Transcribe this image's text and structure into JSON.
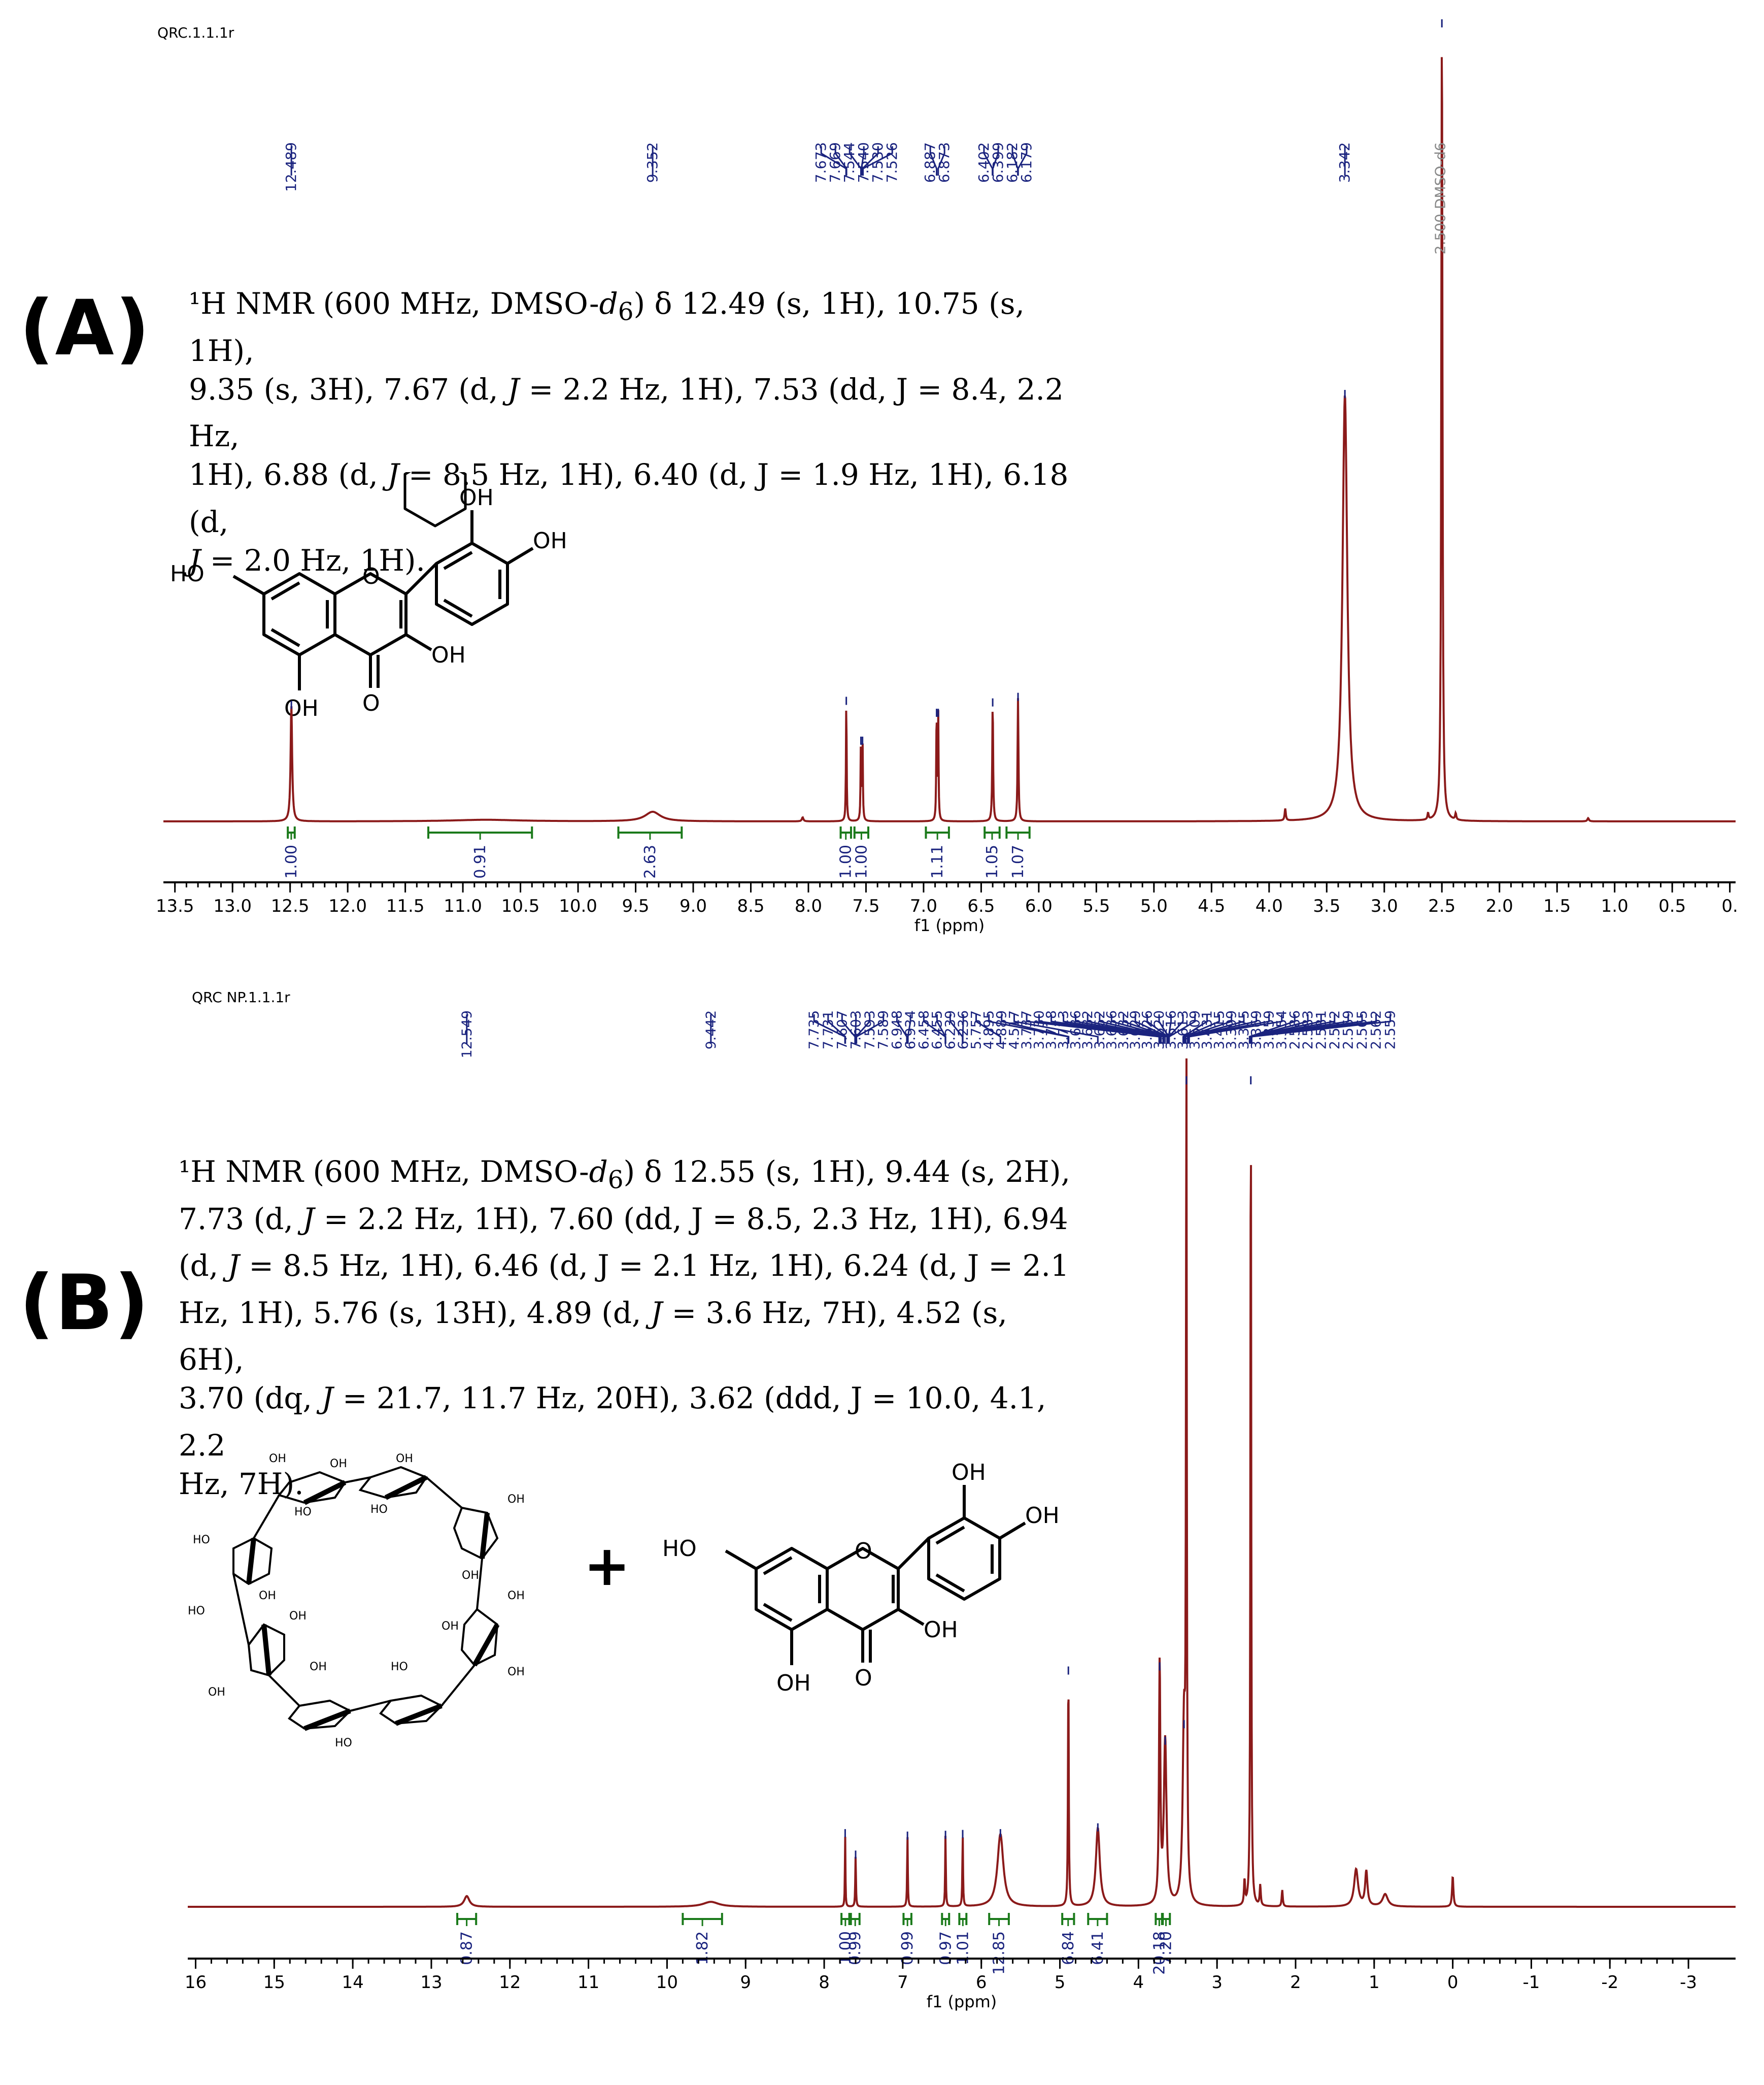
{
  "colors": {
    "spectrum": "#8b1a1a",
    "peak_label": "#1a237e",
    "integral": "#1b7a1b",
    "axis": "#000000"
  },
  "panels": [
    {
      "tag": "(A)",
      "file_id": "QRC.1.1.1r",
      "description_lines": [
        [
          "¹H NMR (600 MHz, DMSO-",
          "d",
          "6",
          ") δ 12.49 (s, 1H), 10.75 (s, 1H),"
        ],
        [
          "9.35 (s, 3H), 7.67 (d, ",
          "J",
          "",
          " = 2.2 Hz, 1H), 7.53 (dd, J = 8.4, 2.2 Hz,"
        ],
        [
          "1H), 6.88 (d, ",
          "J",
          "",
          " = 8.5 Hz, 1H), 6.40 (d, J = 1.9 Hz, 1H), 6.18 (d,"
        ],
        [
          "",
          "J",
          "",
          " = 2.0 Hz, 1H)."
        ]
      ],
      "structure_labels": [
        "OH",
        "OH",
        "HO",
        "OH",
        "OH",
        "O",
        "O"
      ],
      "chart_data": {
        "type": "line",
        "xlabel": "f1 (ppm)",
        "xlim": [
          13.6,
          -0.05
        ],
        "xticks": [
          "13.5",
          "13.0",
          "12.5",
          "12.0",
          "11.5",
          "11.0",
          "10.5",
          "10.0",
          "9.5",
          "9.0",
          "8.5",
          "8.0",
          "7.5",
          "7.0",
          "6.5",
          "6.0",
          "5.5",
          "5.0",
          "4.5",
          "4.0",
          "3.5",
          "3.0",
          "2.5",
          "2.0",
          "1.5",
          "1.0",
          "0.5",
          "0."
        ],
        "xtick_values": [
          13.5,
          13.0,
          12.5,
          12.0,
          11.5,
          11.0,
          10.5,
          10.0,
          9.5,
          9.0,
          8.5,
          8.0,
          7.5,
          7.0,
          6.5,
          6.0,
          5.5,
          5.0,
          4.5,
          4.0,
          3.5,
          3.0,
          2.5,
          2.0,
          1.5,
          1.0,
          0.5,
          0.0
        ],
        "peaks": [
          {
            "ppm": 12.489,
            "h": 0.145,
            "w": 0.008
          },
          {
            "ppm": 9.352,
            "h": 0.012,
            "w": 0.08
          },
          {
            "ppm": 10.8,
            "h": 0.002,
            "w": 0.35
          },
          {
            "ppm": 8.05,
            "h": 0.005,
            "w": 0.008
          },
          {
            "ppm": 7.671,
            "h": 0.15,
            "w": 0.0035
          },
          {
            "ppm": 7.544,
            "h": 0.1,
            "w": 0.0035
          },
          {
            "ppm": 7.53,
            "h": 0.1,
            "w": 0.0035
          },
          {
            "ppm": 6.887,
            "h": 0.135,
            "w": 0.0035
          },
          {
            "ppm": 6.873,
            "h": 0.135,
            "w": 0.0035
          },
          {
            "ppm": 6.4,
            "h": 0.148,
            "w": 0.0045
          },
          {
            "ppm": 6.18,
            "h": 0.155,
            "w": 0.0045
          },
          {
            "ppm": 3.86,
            "h": 0.015,
            "w": 0.006
          },
          {
            "ppm": 3.342,
            "h": 0.535,
            "w": 0.025
          },
          {
            "ppm": 2.62,
            "h": 0.008,
            "w": 0.006
          },
          {
            "ppm": 2.5,
            "h": 1.0,
            "w": 0.006
          },
          {
            "ppm": 2.38,
            "h": 0.008,
            "w": 0.006
          },
          {
            "ppm": 1.23,
            "h": 0.004,
            "w": 0.008
          }
        ],
        "peak_labels": [
          {
            "text": "12.489",
            "ppm": 12.489
          },
          {
            "text": "9.352",
            "ppm": 9.352
          },
          {
            "text": "7.673",
            "ppm": 7.673
          },
          {
            "text": "7.669",
            "ppm": 7.669
          },
          {
            "text": "7.544",
            "ppm": 7.544
          },
          {
            "text": "7.540",
            "ppm": 7.54
          },
          {
            "text": "7.530",
            "ppm": 7.53
          },
          {
            "text": "7.526",
            "ppm": 7.526
          },
          {
            "text": "6.887",
            "ppm": 6.887
          },
          {
            "text": "6.873",
            "ppm": 6.873
          },
          {
            "text": "6.402",
            "ppm": 6.402
          },
          {
            "text": "6.399",
            "ppm": 6.399
          },
          {
            "text": "6.182",
            "ppm": 6.182
          },
          {
            "text": "6.179",
            "ppm": 6.179
          },
          {
            "text": "3.342",
            "ppm": 3.342
          }
        ],
        "solvent_label": {
          "text": "2.500 DMSO-d6",
          "ppm": 2.5
        },
        "integrals": [
          {
            "value": "1.00",
            "from": 12.52,
            "to": 12.46
          },
          {
            "value": "0.91",
            "from": 11.3,
            "to": 10.4
          },
          {
            "value": "2.63",
            "from": 9.65,
            "to": 9.1
          },
          {
            "value": "1.00",
            "from": 7.72,
            "to": 7.63
          },
          {
            "value": "1.00",
            "from": 7.6,
            "to": 7.48
          },
          {
            "value": "1.11",
            "from": 6.98,
            "to": 6.78
          },
          {
            "value": "1.05",
            "from": 6.47,
            "to": 6.34
          },
          {
            "value": "1.07",
            "from": 6.28,
            "to": 6.08
          }
        ]
      }
    },
    {
      "tag": "(B)",
      "file_id": "QRC NP.1.1.1r",
      "description_lines": [
        [
          "¹H NMR (600 MHz, DMSO-",
          "d",
          "6",
          ") δ 12.55 (s, 1H), 9.44 (s, 2H),"
        ],
        [
          "7.73 (d, ",
          "J",
          "",
          " = 2.2 Hz, 1H), 7.60 (dd, J = 8.5, 2.3 Hz, 1H), 6.94"
        ],
        [
          "(d, ",
          "J",
          "",
          " = 8.5 Hz, 1H), 6.46 (d, J = 2.1 Hz, 1H), 6.24 (d, J = 2.1"
        ],
        [
          "Hz, 1H), 5.76 (s, 13H), 4.89 (d, ",
          "J",
          "",
          " = 3.6 Hz, 7H), 4.52 (s, 6H),"
        ],
        [
          "3.70 (dq, ",
          "J",
          "",
          " = 21.7, 11.7 Hz, 20H), 3.62 (ddd, J = 10.0, 4.1, 2.2"
        ],
        [
          "Hz, 7H).",
          "",
          "",
          ""
        ]
      ],
      "plus_sign": "+",
      "structure_labels": [
        "OH",
        "OH",
        "HO",
        "OH",
        "OH",
        "O",
        "O"
      ],
      "cyclodextrin_labels": [
        "OH",
        "OH",
        "OH",
        "HO",
        "HO",
        "HO",
        "OH",
        "OH",
        "OH",
        "OH",
        "HO",
        "OH",
        "OH",
        "OH",
        "HO",
        "OH",
        "OH",
        "HO"
      ],
      "chart_data": {
        "type": "line",
        "xlabel": "f1 (ppm)",
        "xlim": [
          16.1,
          -3.6
        ],
        "xticks": [
          "16",
          "15",
          "14",
          "13",
          "12",
          "11",
          "10",
          "9",
          "8",
          "7",
          "6",
          "5",
          "4",
          "3",
          "2",
          "1",
          "0",
          "-1",
          "-2",
          "-3"
        ],
        "xtick_values": [
          16,
          15,
          14,
          13,
          12,
          11,
          10,
          9,
          8,
          7,
          6,
          5,
          4,
          3,
          2,
          1,
          0,
          -1,
          -2,
          -3
        ],
        "peaks": [
          {
            "ppm": 12.549,
            "h": 0.013,
            "w": 0.04
          },
          {
            "ppm": 9.442,
            "h": 0.006,
            "w": 0.12
          },
          {
            "ppm": 7.733,
            "h": 0.088,
            "w": 0.004
          },
          {
            "ppm": 7.6,
            "h": 0.062,
            "w": 0.005
          },
          {
            "ppm": 6.94,
            "h": 0.085,
            "w": 0.005
          },
          {
            "ppm": 6.456,
            "h": 0.086,
            "w": 0.005
          },
          {
            "ppm": 6.237,
            "h": 0.087,
            "w": 0.005
          },
          {
            "ppm": 5.757,
            "h": 0.088,
            "w": 0.045
          },
          {
            "ppm": 4.892,
            "h": 0.285,
            "w": 0.006
          },
          {
            "ppm": 4.517,
            "h": 0.095,
            "w": 0.03
          },
          {
            "ppm": 3.73,
            "h": 0.29,
            "w": 0.01
          },
          {
            "ppm": 3.66,
            "h": 0.2,
            "w": 0.02
          },
          {
            "ppm": 3.42,
            "h": 0.22,
            "w": 0.02
          },
          {
            "ppm": 3.39,
            "h": 1.0,
            "w": 0.006
          },
          {
            "ppm": 2.57,
            "h": 1.0,
            "w": 0.006
          },
          {
            "ppm": 2.65,
            "h": 0.03,
            "w": 0.008
          },
          {
            "ppm": 2.45,
            "h": 0.025,
            "w": 0.008
          },
          {
            "ppm": 2.17,
            "h": 0.02,
            "w": 0.008
          },
          {
            "ppm": 1.23,
            "h": 0.045,
            "w": 0.03
          },
          {
            "ppm": 1.1,
            "h": 0.042,
            "w": 0.018
          },
          {
            "ppm": 0.86,
            "h": 0.015,
            "w": 0.04
          },
          {
            "ppm": 0.0,
            "h": 0.037,
            "w": 0.01
          }
        ],
        "peak_labels": [
          {
            "text": "12.549",
            "ppm": 12.549
          },
          {
            "text": "9.442",
            "ppm": 9.442
          },
          {
            "text": "7.735",
            "ppm": 7.735
          },
          {
            "text": "7.731",
            "ppm": 7.731
          },
          {
            "text": "7.607",
            "ppm": 7.607
          },
          {
            "text": "7.603",
            "ppm": 7.603
          },
          {
            "text": "7.593",
            "ppm": 7.593
          },
          {
            "text": "7.589",
            "ppm": 7.589
          },
          {
            "text": "6.948",
            "ppm": 6.948
          },
          {
            "text": "6.934",
            "ppm": 6.934
          },
          {
            "text": "6.458",
            "ppm": 6.458
          },
          {
            "text": "6.455",
            "ppm": 6.455
          },
          {
            "text": "6.239",
            "ppm": 6.239
          },
          {
            "text": "6.236",
            "ppm": 6.236
          },
          {
            "text": "5.757",
            "ppm": 5.757
          },
          {
            "text": "4.895",
            "ppm": 4.895
          },
          {
            "text": "4.889",
            "ppm": 4.889
          },
          {
            "text": "4.517",
            "ppm": 4.517
          },
          {
            "text": "3.737",
            "ppm": 3.737
          },
          {
            "text": "3.730",
            "ppm": 3.73
          },
          {
            "text": "3.718",
            "ppm": 3.718
          },
          {
            "text": "3.713",
            "ppm": 3.713
          },
          {
            "text": "3.686",
            "ppm": 3.686
          },
          {
            "text": "3.682",
            "ppm": 3.682
          },
          {
            "text": "3.662",
            "ppm": 3.662
          },
          {
            "text": "3.636",
            "ppm": 3.636
          },
          {
            "text": "3.632",
            "ppm": 3.632
          },
          {
            "text": "3.629",
            "ppm": 3.629
          },
          {
            "text": "3.626",
            "ppm": 3.626
          },
          {
            "text": "3.620",
            "ppm": 3.62
          },
          {
            "text": "3.616",
            "ppm": 3.616
          },
          {
            "text": "3.613",
            "ppm": 3.613
          },
          {
            "text": "3.609",
            "ppm": 3.609
          },
          {
            "text": "3.431",
            "ppm": 3.431
          },
          {
            "text": "3.415",
            "ppm": 3.415
          },
          {
            "text": "3.399",
            "ppm": 3.399
          },
          {
            "text": "3.375",
            "ppm": 3.375
          },
          {
            "text": "3.369",
            "ppm": 3.369
          },
          {
            "text": "3.359",
            "ppm": 3.359
          },
          {
            "text": "3.354",
            "ppm": 3.354
          },
          {
            "text": "2.586",
            "ppm": 2.586
          },
          {
            "text": "2.583",
            "ppm": 2.583
          },
          {
            "text": "2.581",
            "ppm": 2.581
          },
          {
            "text": "2.572",
            "ppm": 2.572
          },
          {
            "text": "2.569",
            "ppm": 2.569
          },
          {
            "text": "2.565",
            "ppm": 2.565
          },
          {
            "text": "2.562",
            "ppm": 2.562
          },
          {
            "text": "2.559",
            "ppm": 2.559
          }
        ],
        "integrals": [
          {
            "value": "0.87",
            "from": 12.67,
            "to": 12.43
          },
          {
            "value": "1.82",
            "from": 9.8,
            "to": 9.3
          },
          {
            "value": "1.00",
            "from": 7.78,
            "to": 7.68
          },
          {
            "value": "0.99",
            "from": 7.66,
            "to": 7.55
          },
          {
            "value": "0.99",
            "from": 6.99,
            "to": 6.89
          },
          {
            "value": "0.97",
            "from": 6.5,
            "to": 6.41
          },
          {
            "value": "1.01",
            "from": 6.28,
            "to": 6.19
          },
          {
            "value": "12.85",
            "from": 5.9,
            "to": 5.65
          },
          {
            "value": "6.84",
            "from": 4.97,
            "to": 4.82
          },
          {
            "value": "6.41",
            "from": 4.64,
            "to": 4.4
          },
          {
            "value": "20.18",
            "from": 3.78,
            "to": 3.69
          },
          {
            "value": "7.20",
            "from": 3.7,
            "to": 3.6
          }
        ]
      }
    }
  ]
}
